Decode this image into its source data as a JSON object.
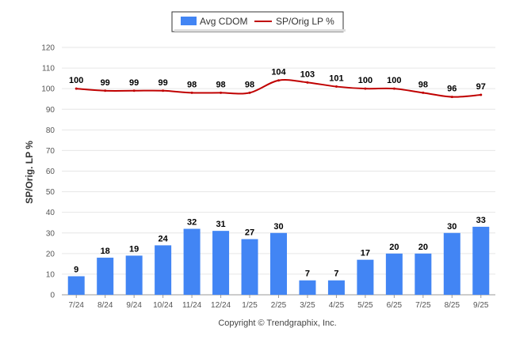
{
  "chart_data": {
    "type": "bar",
    "categories": [
      "7/24",
      "8/24",
      "9/24",
      "10/24",
      "11/24",
      "12/24",
      "1/25",
      "2/25",
      "3/25",
      "4/25",
      "5/25",
      "6/25",
      "7/25",
      "8/25",
      "9/25"
    ],
    "series": [
      {
        "name": "Avg CDOM",
        "type": "bar",
        "color": "#4285f4",
        "values": [
          9,
          18,
          19,
          24,
          32,
          31,
          27,
          30,
          7,
          7,
          17,
          20,
          20,
          30,
          33
        ]
      },
      {
        "name": "SP/Orig LP %",
        "type": "line",
        "color": "#c00000",
        "values": [
          100,
          99,
          99,
          99,
          98,
          98,
          98,
          104,
          103,
          101,
          100,
          100,
          98,
          96,
          97
        ]
      }
    ],
    "ylabel": "SP/Orig. LP %",
    "ylim": [
      0,
      120
    ],
    "yticks": [
      0,
      10,
      20,
      30,
      40,
      50,
      60,
      70,
      80,
      90,
      100,
      110,
      120
    ],
    "grid": true,
    "legend": "top-center",
    "footer": "Copyright © Trendgraphix, Inc."
  }
}
